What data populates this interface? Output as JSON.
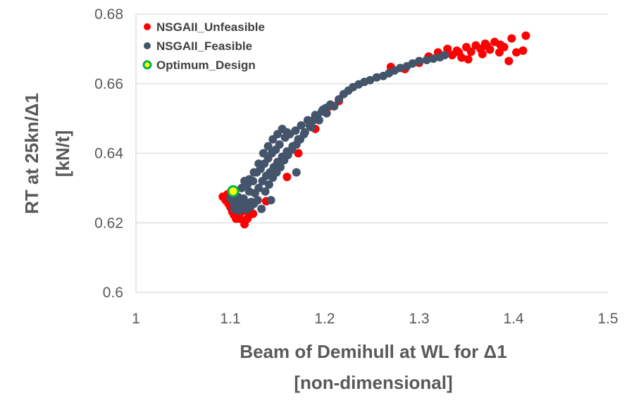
{
  "chart_data": {
    "type": "scatter",
    "title": "",
    "xlabel": [
      "Beam of Demihull at WL for Δ1",
      "[non-dimensional]"
    ],
    "ylabel": [
      "RT at 25kn/Δ1",
      "[kN/t]"
    ],
    "xlim": [
      1,
      1.5
    ],
    "ylim": [
      0.6,
      0.68
    ],
    "xticks": [
      1,
      1.1,
      1.2,
      1.3,
      1.4,
      1.5
    ],
    "yticks": [
      0.6,
      0.62,
      0.64,
      0.66,
      0.68
    ],
    "xtick_labels": [
      "1",
      "1.1",
      "1.2",
      "1.3",
      "1.4",
      "1.5"
    ],
    "ytick_labels": [
      "0.6",
      "0.62",
      "0.64",
      "0.66",
      "0.68"
    ],
    "grid": "horizontal",
    "legend_position": "top-left",
    "series": [
      {
        "name": "NSGAII_Unfeasible",
        "color": "#ff0000",
        "points": [
          [
            1.092,
            0.6275
          ],
          [
            1.095,
            0.6265
          ],
          [
            1.098,
            0.6255
          ],
          [
            1.1,
            0.6245
          ],
          [
            1.102,
            0.6232
          ],
          [
            1.104,
            0.6222
          ],
          [
            1.106,
            0.6212
          ],
          [
            1.11,
            0.6212
          ],
          [
            1.115,
            0.6196
          ],
          [
            1.118,
            0.6212
          ],
          [
            1.12,
            0.6222
          ],
          [
            1.124,
            0.6226
          ],
          [
            1.097,
            0.6282
          ],
          [
            1.1,
            0.6285
          ],
          [
            1.108,
            0.6252
          ],
          [
            1.112,
            0.6232
          ],
          [
            1.138,
            0.6262
          ],
          [
            1.16,
            0.6332
          ],
          [
            1.172,
            0.64
          ],
          [
            1.19,
            0.647
          ],
          [
            1.205,
            0.6535
          ],
          [
            1.215,
            0.655
          ],
          [
            1.27,
            0.6648
          ],
          [
            1.285,
            0.6642
          ],
          [
            1.3,
            0.666
          ],
          [
            1.31,
            0.6678
          ],
          [
            1.32,
            0.669
          ],
          [
            1.33,
            0.67
          ],
          [
            1.335,
            0.6682
          ],
          [
            1.34,
            0.6695
          ],
          [
            1.345,
            0.6675
          ],
          [
            1.35,
            0.6705
          ],
          [
            1.355,
            0.6692
          ],
          [
            1.36,
            0.671
          ],
          [
            1.365,
            0.67
          ],
          [
            1.37,
            0.6715
          ],
          [
            1.375,
            0.6698
          ],
          [
            1.38,
            0.672
          ],
          [
            1.385,
            0.669
          ],
          [
            1.39,
            0.6705
          ],
          [
            1.395,
            0.6665
          ],
          [
            1.398,
            0.673
          ],
          [
            1.403,
            0.669
          ],
          [
            1.41,
            0.6695
          ],
          [
            1.413,
            0.6738
          ],
          [
            1.342,
            0.669
          ],
          [
            1.352,
            0.667
          ],
          [
            1.367,
            0.6685
          ],
          [
            1.372,
            0.6708
          ],
          [
            1.386,
            0.6712
          ]
        ]
      },
      {
        "name": "NSGAII_Feasible",
        "color": "#44546a",
        "points": [
          [
            1.1,
            0.627
          ],
          [
            1.103,
            0.626
          ],
          [
            1.106,
            0.625
          ],
          [
            1.108,
            0.6275
          ],
          [
            1.11,
            0.6255
          ],
          [
            1.112,
            0.63
          ],
          [
            1.114,
            0.627
          ],
          [
            1.116,
            0.6255
          ],
          [
            1.118,
            0.631
          ],
          [
            1.12,
            0.629
          ],
          [
            1.122,
            0.626
          ],
          [
            1.124,
            0.632
          ],
          [
            1.126,
            0.6285
          ],
          [
            1.128,
            0.6345
          ],
          [
            1.13,
            0.63
          ],
          [
            1.132,
            0.6355
          ],
          [
            1.134,
            0.632
          ],
          [
            1.136,
            0.637
          ],
          [
            1.138,
            0.6335
          ],
          [
            1.14,
            0.6385
          ],
          [
            1.142,
            0.6345
          ],
          [
            1.144,
            0.64
          ],
          [
            1.146,
            0.636
          ],
          [
            1.148,
            0.641
          ],
          [
            1.15,
            0.6375
          ],
          [
            1.152,
            0.6425
          ],
          [
            1.155,
            0.639
          ],
          [
            1.158,
            0.6445
          ],
          [
            1.16,
            0.6405
          ],
          [
            1.163,
            0.6455
          ],
          [
            1.166,
            0.642
          ],
          [
            1.169,
            0.6465
          ],
          [
            1.172,
            0.644
          ],
          [
            1.175,
            0.648
          ],
          [
            1.178,
            0.6455
          ],
          [
            1.182,
            0.6495
          ],
          [
            1.186,
            0.6475
          ],
          [
            1.19,
            0.651
          ],
          [
            1.194,
            0.6495
          ],
          [
            1.198,
            0.6525
          ],
          [
            1.202,
            0.6515
          ],
          [
            1.206,
            0.654
          ],
          [
            1.21,
            0.6535
          ],
          [
            1.215,
            0.6555
          ],
          [
            1.22,
            0.657
          ],
          [
            1.225,
            0.658
          ],
          [
            1.23,
            0.659
          ],
          [
            1.236,
            0.6598
          ],
          [
            1.242,
            0.6605
          ],
          [
            1.248,
            0.661
          ],
          [
            1.255,
            0.6618
          ],
          [
            1.262,
            0.6622
          ],
          [
            1.268,
            0.663
          ],
          [
            1.274,
            0.6638
          ],
          [
            1.28,
            0.6645
          ],
          [
            1.287,
            0.665
          ],
          [
            1.293,
            0.6658
          ],
          [
            1.3,
            0.6665
          ],
          [
            1.308,
            0.6668
          ],
          [
            1.315,
            0.6672
          ],
          [
            1.322,
            0.6676
          ],
          [
            1.327,
            0.6682
          ],
          [
            1.104,
            0.624
          ],
          [
            1.109,
            0.6235
          ],
          [
            1.113,
            0.6242
          ],
          [
            1.117,
            0.6238
          ],
          [
            1.121,
            0.6245
          ],
          [
            1.125,
            0.6255
          ],
          [
            1.129,
            0.6265
          ],
          [
            1.133,
            0.624
          ],
          [
            1.137,
            0.629
          ],
          [
            1.141,
            0.631
          ],
          [
            1.145,
            0.633
          ],
          [
            1.149,
            0.6345
          ],
          [
            1.153,
            0.636
          ],
          [
            1.157,
            0.638
          ],
          [
            1.161,
            0.6395
          ],
          [
            1.165,
            0.641
          ],
          [
            1.17,
            0.6425
          ],
          [
            1.174,
            0.644
          ],
          [
            1.179,
            0.646
          ],
          [
            1.184,
            0.648
          ],
          [
            1.188,
            0.6495
          ],
          [
            1.192,
            0.6505
          ],
          [
            1.197,
            0.652
          ],
          [
            1.201,
            0.653
          ],
          [
            1.143,
            0.6265
          ],
          [
            1.17,
            0.6345
          ],
          [
            1.16,
            0.646
          ],
          [
            1.155,
            0.647
          ],
          [
            1.15,
            0.6455
          ],
          [
            1.145,
            0.644
          ],
          [
            1.14,
            0.642
          ],
          [
            1.135,
            0.64
          ],
          [
            1.13,
            0.637
          ],
          [
            1.125,
            0.6345
          ],
          [
            1.12,
            0.6325
          ],
          [
            1.115,
            0.632
          ]
        ]
      },
      {
        "name": "Optimum_Design",
        "color": "#ffff00",
        "edge_color": "#00b050",
        "points": [
          [
            1.103,
            0.6291
          ]
        ]
      }
    ]
  }
}
